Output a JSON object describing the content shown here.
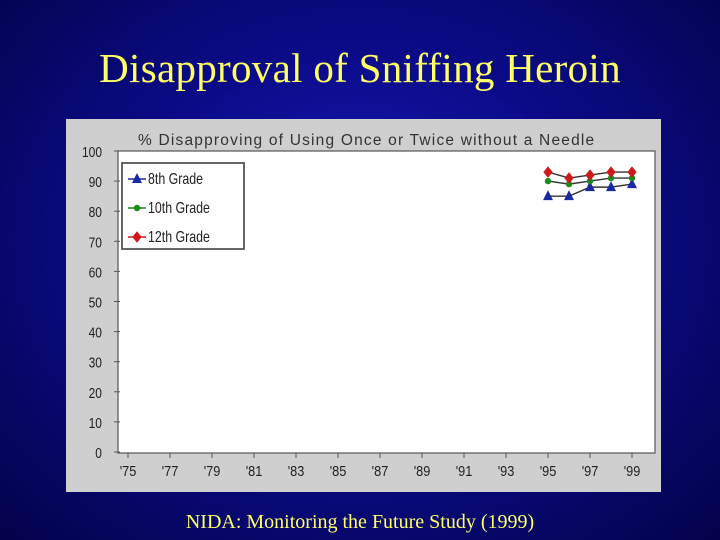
{
  "slide": {
    "title": "Disapproval of Sniffing Heroin",
    "footer": "NIDA: Monitoring the Future Study (1999)"
  },
  "chart_data": {
    "type": "line",
    "title": "% Disapproving of Using Once or Twice without a Needle",
    "xlabel": "",
    "ylabel": "",
    "ylim": [
      0,
      100
    ],
    "yticks": [
      0,
      10,
      20,
      30,
      40,
      50,
      60,
      70,
      80,
      90,
      100
    ],
    "xticks": [
      "'75",
      "'77",
      "'79",
      "'81",
      "'83",
      "'85",
      "'87",
      "'89",
      "'91",
      "'93",
      "'95",
      "'97",
      "'99"
    ],
    "xlim": [
      1975,
      1999
    ],
    "grid": false,
    "legend": "top-left",
    "series": [
      {
        "name": "8th Grade",
        "color": "#1a2aa0",
        "marker": "triangle",
        "x": [
          1995,
          1996,
          1997,
          1998,
          1999
        ],
        "values": [
          85,
          85,
          88,
          88,
          89
        ]
      },
      {
        "name": "10th Grade",
        "color": "#1a8a1a",
        "marker": "dot",
        "x": [
          1995,
          1996,
          1997,
          1998,
          1999
        ],
        "values": [
          90,
          89,
          90,
          91,
          91
        ]
      },
      {
        "name": "12th Grade",
        "color": "#cc1a1a",
        "marker": "diamond",
        "x": [
          1995,
          1996,
          1997,
          1998,
          1999
        ],
        "values": [
          93,
          91,
          92,
          93,
          93
        ]
      }
    ]
  }
}
